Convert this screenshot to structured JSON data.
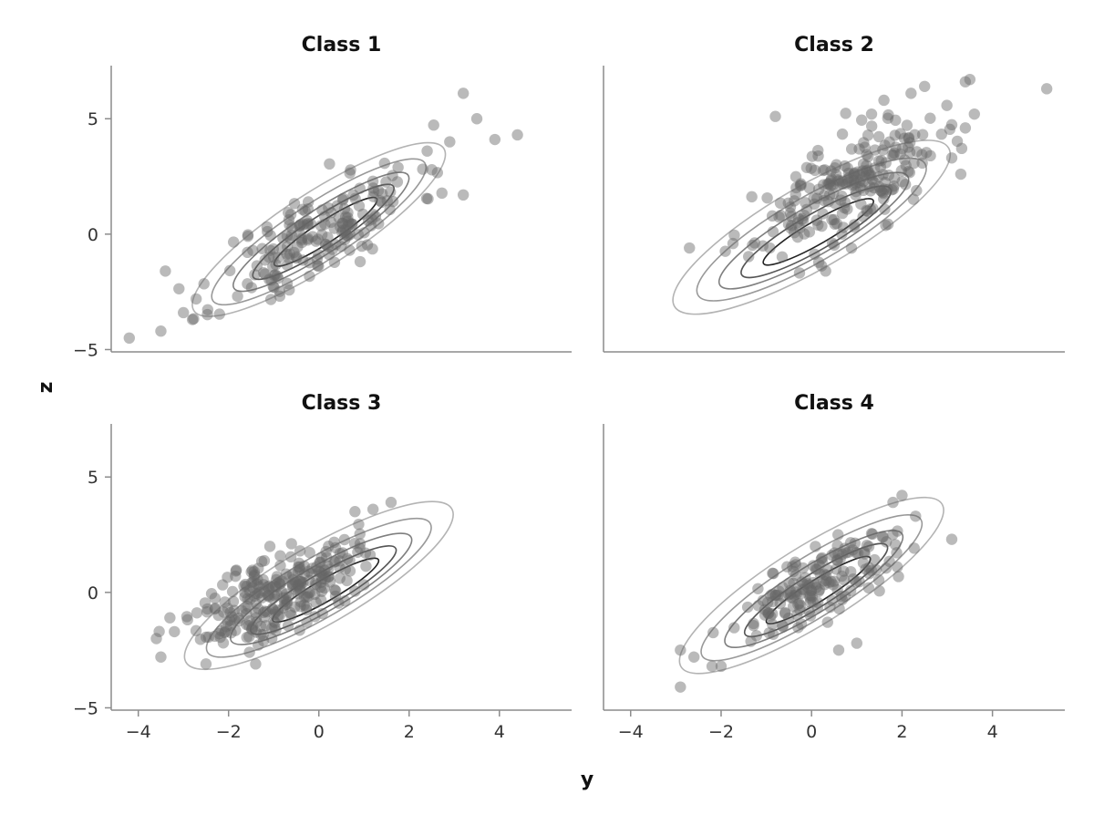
{
  "figure": {
    "xlabel": "y",
    "ylabel": "z",
    "marker_color": "#666666",
    "marker_opacity": 0.45,
    "contour_colors": [
      "#cccccc",
      "#b3b3b3",
      "#999999",
      "#7f7f7f",
      "#555555",
      "#222222"
    ]
  },
  "chart_data": [
    {
      "type": "scatter",
      "title": "Class 1",
      "xlim": [
        -4.6,
        5.6
      ],
      "ylim": [
        -5.1,
        7.3
      ],
      "xticks": [],
      "yticks": [
        -5,
        0,
        5
      ],
      "show_xaxis": false,
      "show_yaxis": true,
      "center": [
        0,
        0
      ],
      "cluster": {
        "n": 180,
        "corr": 0.75,
        "sx": 1.1,
        "sy": 1.55,
        "seed": 11
      },
      "extra_points": [
        [
          -4.2,
          -4.5
        ],
        [
          -3.5,
          -4.2
        ],
        [
          -3.4,
          -1.6
        ],
        [
          3.2,
          6.1
        ],
        [
          3.5,
          5.0
        ],
        [
          3.9,
          4.1
        ],
        [
          4.4,
          4.3
        ],
        [
          3.2,
          1.7
        ],
        [
          2.9,
          4.0
        ],
        [
          2.4,
          3.6
        ],
        [
          -2.8,
          -3.7
        ],
        [
          -3.0,
          -3.4
        ]
      ],
      "contours": [
        {
          "cx": 0.0,
          "cy": 0.2,
          "rx": 3.3,
          "ry": 1.6,
          "angle": 33
        },
        {
          "cx": 0.0,
          "cy": 0.1,
          "rx": 2.8,
          "ry": 1.25,
          "angle": 33
        },
        {
          "cx": 0.05,
          "cy": 0.1,
          "rx": 2.3,
          "ry": 0.95,
          "angle": 33
        },
        {
          "cx": 0.1,
          "cy": 0.1,
          "rx": 1.85,
          "ry": 0.7,
          "angle": 33
        },
        {
          "cx": 0.15,
          "cy": 0.1,
          "rx": 1.35,
          "ry": 0.47,
          "angle": 33
        }
      ]
    },
    {
      "type": "scatter",
      "title": "Class 2",
      "xlim": [
        -4.6,
        5.6
      ],
      "ylim": [
        -5.1,
        7.3
      ],
      "xticks": [],
      "yticks": [],
      "show_xaxis": false,
      "show_yaxis": false,
      "center": [
        0.8,
        2.0
      ],
      "cluster": {
        "n": 230,
        "corr": 0.65,
        "sx": 1.0,
        "sy": 1.4,
        "seed": 23
      },
      "extra_points": [
        [
          5.2,
          6.3
        ],
        [
          3.5,
          6.7
        ],
        [
          3.4,
          6.6
        ],
        [
          2.5,
          6.4
        ],
        [
          3.6,
          5.2
        ],
        [
          3.4,
          4.6
        ],
        [
          -2.7,
          -0.6
        ],
        [
          -0.8,
          5.1
        ],
        [
          1.6,
          5.8
        ],
        [
          2.2,
          6.1
        ],
        [
          3.1,
          3.3
        ],
        [
          3.3,
          2.6
        ]
      ],
      "contours": [
        {
          "cx": 0.0,
          "cy": 0.3,
          "rx": 3.5,
          "ry": 1.8,
          "angle": 30
        },
        {
          "cx": 0.0,
          "cy": 0.2,
          "rx": 2.9,
          "ry": 1.4,
          "angle": 30
        },
        {
          "cx": 0.05,
          "cy": 0.15,
          "rx": 2.4,
          "ry": 1.05,
          "angle": 30
        },
        {
          "cx": 0.1,
          "cy": 0.1,
          "rx": 1.9,
          "ry": 0.78,
          "angle": 30
        },
        {
          "cx": 0.15,
          "cy": 0.1,
          "rx": 1.4,
          "ry": 0.5,
          "angle": 30
        }
      ]
    },
    {
      "type": "scatter",
      "title": "Class 3",
      "xlim": [
        -4.6,
        5.6
      ],
      "ylim": [
        -5.1,
        7.3
      ],
      "xticks": [
        -4,
        -2,
        0,
        2,
        4
      ],
      "yticks": [
        -5,
        0,
        5
      ],
      "show_xaxis": true,
      "show_yaxis": true,
      "center": [
        -0.9,
        0.0
      ],
      "cluster": {
        "n": 260,
        "corr": 0.6,
        "sx": 0.85,
        "sy": 1.1,
        "seed": 37
      },
      "extra_points": [
        [
          -3.6,
          -2.0
        ],
        [
          -3.5,
          -2.8
        ],
        [
          -3.3,
          -1.1
        ],
        [
          -3.2,
          -1.7
        ],
        [
          1.2,
          3.6
        ],
        [
          1.6,
          3.9
        ],
        [
          -1.4,
          -3.1
        ],
        [
          -2.5,
          -3.1
        ],
        [
          0.8,
          3.5
        ]
      ],
      "contours": [
        {
          "cx": 0.0,
          "cy": 0.3,
          "rx": 3.4,
          "ry": 1.7,
          "angle": 30
        },
        {
          "cx": 0.0,
          "cy": 0.2,
          "rx": 2.85,
          "ry": 1.3,
          "angle": 30
        },
        {
          "cx": 0.05,
          "cy": 0.15,
          "rx": 2.3,
          "ry": 1.0,
          "angle": 30
        },
        {
          "cx": 0.1,
          "cy": 0.1,
          "rx": 1.85,
          "ry": 0.72,
          "angle": 30
        },
        {
          "cx": 0.15,
          "cy": 0.1,
          "rx": 1.35,
          "ry": 0.47,
          "angle": 30
        }
      ]
    },
    {
      "type": "scatter",
      "title": "Class 4",
      "xlim": [
        -4.6,
        5.6
      ],
      "ylim": [
        -5.1,
        7.3
      ],
      "xticks": [
        -4,
        -2,
        0,
        2,
        4
      ],
      "yticks": [],
      "show_xaxis": true,
      "show_yaxis": false,
      "center": [
        0.1,
        0.3
      ],
      "cluster": {
        "n": 170,
        "corr": 0.75,
        "sx": 0.9,
        "sy": 1.2,
        "seed": 51
      },
      "extra_points": [
        [
          -2.9,
          -4.1
        ],
        [
          -2.9,
          -2.5
        ],
        [
          -2.6,
          -2.8
        ],
        [
          -2.2,
          -3.2
        ],
        [
          -2.0,
          -3.2
        ],
        [
          2.0,
          4.2
        ],
        [
          2.3,
          3.3
        ],
        [
          3.1,
          2.3
        ],
        [
          1.8,
          3.9
        ],
        [
          1.0,
          -2.2
        ],
        [
          0.6,
          -2.5
        ]
      ],
      "contours": [
        {
          "cx": 0.0,
          "cy": 0.3,
          "rx": 3.4,
          "ry": 1.7,
          "angle": 32
        },
        {
          "cx": 0.0,
          "cy": 0.2,
          "rx": 2.85,
          "ry": 1.3,
          "angle": 32
        },
        {
          "cx": 0.05,
          "cy": 0.15,
          "rx": 2.3,
          "ry": 1.0,
          "angle": 32
        },
        {
          "cx": 0.1,
          "cy": 0.1,
          "rx": 1.85,
          "ry": 0.72,
          "angle": 32
        },
        {
          "cx": 0.15,
          "cy": 0.1,
          "rx": 1.35,
          "ry": 0.47,
          "angle": 32
        }
      ]
    }
  ]
}
